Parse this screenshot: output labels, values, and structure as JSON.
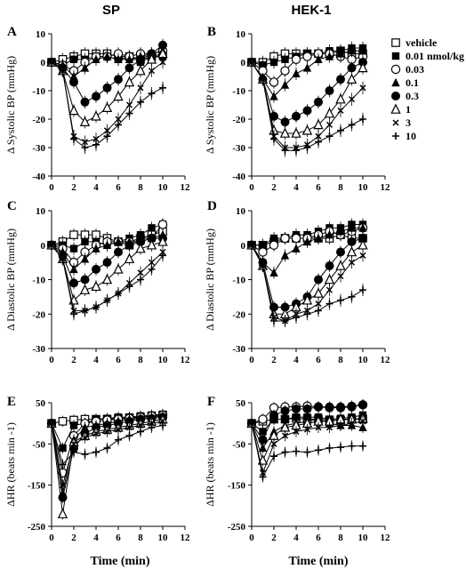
{
  "figure": {
    "column_titles": [
      "SP",
      "HEK-1"
    ],
    "panel_letters": [
      "A",
      "B",
      "C",
      "D",
      "E",
      "F"
    ],
    "xlabel": "Time (min)"
  },
  "legend": {
    "entries": [
      {
        "label": "vehicle",
        "marker": "open-square"
      },
      {
        "label": "0.01 nmol/kg",
        "marker": "filled-square"
      },
      {
        "label": "0.03",
        "marker": "open-circle"
      },
      {
        "label": "0.1",
        "marker": "filled-triangle"
      },
      {
        "label": "0.3",
        "marker": "filled-circle"
      },
      {
        "label": "1",
        "marker": "open-triangle"
      },
      {
        "label": "3",
        "marker": "cross"
      },
      {
        "label": "10",
        "marker": "plus"
      }
    ]
  },
  "chart_data": [
    {
      "type": "line",
      "panel": "A",
      "title": "",
      "xlabel": "",
      "ylabel": "Δ Systolic BP (mmHg)",
      "xlim": [
        0,
        12
      ],
      "ylim": [
        -40,
        10
      ],
      "xticks": [
        0,
        2,
        4,
        6,
        8,
        10,
        12
      ],
      "yticks": [
        10,
        0,
        -10,
        -20,
        -30,
        -40
      ],
      "x": [
        0,
        1,
        2,
        3,
        4,
        5,
        6,
        7,
        8,
        9,
        10
      ],
      "series": [
        {
          "name": "vehicle",
          "values": [
            0,
            1,
            2,
            3,
            3,
            3,
            2,
            2,
            1,
            2,
            3
          ]
        },
        {
          "name": "0.01 nmol/kg",
          "values": [
            0,
            -1,
            1,
            1,
            2,
            2,
            1,
            2,
            0,
            2,
            2
          ]
        },
        {
          "name": "0.03",
          "values": [
            0,
            -1,
            -3,
            0,
            2,
            2,
            3,
            2,
            3,
            3,
            4
          ]
        },
        {
          "name": "0.1",
          "values": [
            0,
            -1,
            -5,
            -2,
            1,
            2,
            1,
            1,
            2,
            3,
            4
          ]
        },
        {
          "name": "0.3",
          "values": [
            0,
            -2,
            -7,
            -14,
            -12,
            -9,
            -6,
            -2,
            1,
            3,
            6
          ]
        },
        {
          "name": "1",
          "values": [
            0,
            -3,
            -17,
            -21,
            -19,
            -16,
            -12,
            -7,
            -3,
            1,
            3
          ]
        },
        {
          "name": "3",
          "values": [
            0,
            -3,
            -26,
            -28,
            -27,
            -24,
            -20,
            -15,
            -9,
            -3,
            0
          ]
        },
        {
          "name": "10",
          "values": [
            0,
            -3,
            -27,
            -30,
            -29,
            -26,
            -22,
            -18,
            -14,
            -11,
            -9
          ]
        }
      ]
    },
    {
      "type": "line",
      "panel": "B",
      "title": "",
      "xlabel": "",
      "ylabel": "Δ Systolic BP (mmHg)",
      "xlim": [
        0,
        12
      ],
      "ylim": [
        -40,
        10
      ],
      "xticks": [
        0,
        2,
        4,
        6,
        8,
        10,
        12
      ],
      "yticks": [
        10,
        0,
        -10,
        -20,
        -30,
        -40
      ],
      "x": [
        0,
        1,
        2,
        3,
        4,
        5,
        6,
        7,
        8,
        9,
        10
      ],
      "series": [
        {
          "name": "vehicle",
          "values": [
            0,
            0,
            2,
            3,
            3,
            3,
            3,
            3,
            4,
            3,
            3
          ]
        },
        {
          "name": "0.01 nmol/kg",
          "values": [
            0,
            -1,
            0,
            1,
            2,
            3,
            3,
            4,
            4,
            5,
            5
          ]
        },
        {
          "name": "0.03",
          "values": [
            0,
            -3,
            -7,
            -3,
            1,
            2,
            3,
            3,
            2,
            1,
            2
          ]
        },
        {
          "name": "0.1",
          "values": [
            0,
            -6,
            -12,
            -8,
            -4,
            -2,
            1,
            2,
            3,
            4,
            4
          ]
        },
        {
          "name": "0.3",
          "values": [
            0,
            -6,
            -19,
            -21,
            -19,
            -17,
            -14,
            -10,
            -6,
            -2,
            0
          ]
        },
        {
          "name": "1",
          "values": [
            0,
            -6,
            -24,
            -25,
            -25,
            -24,
            -22,
            -18,
            -13,
            -6,
            -2
          ]
        },
        {
          "name": "3",
          "values": [
            0,
            -6,
            -26,
            -30,
            -30,
            -29,
            -26,
            -22,
            -17,
            -13,
            -9
          ]
        },
        {
          "name": "10",
          "values": [
            0,
            -6,
            -27,
            -31,
            -31,
            -30,
            -28,
            -26,
            -24,
            -22,
            -20
          ]
        }
      ]
    },
    {
      "type": "line",
      "panel": "C",
      "title": "",
      "xlabel": "",
      "ylabel": "Δ Diastolic BP (mmHg)",
      "xlim": [
        0,
        12
      ],
      "ylim": [
        -30,
        10
      ],
      "xticks": [
        0,
        2,
        4,
        6,
        8,
        10,
        12
      ],
      "yticks": [
        10,
        0,
        -10,
        -20,
        -30
      ],
      "x": [
        0,
        1,
        2,
        3,
        4,
        5,
        6,
        7,
        8,
        9,
        10
      ],
      "series": [
        {
          "name": "vehicle",
          "values": [
            0,
            1,
            3,
            3,
            3,
            2,
            1,
            0,
            2,
            3,
            4
          ]
        },
        {
          "name": "0.01 nmol/kg",
          "values": [
            0,
            0,
            -1,
            1,
            1,
            0,
            1,
            2,
            3,
            5,
            6
          ]
        },
        {
          "name": "0.03",
          "values": [
            0,
            -1,
            -5,
            -2,
            0,
            1,
            1,
            1,
            1,
            2,
            6
          ]
        },
        {
          "name": "0.1",
          "values": [
            0,
            -2,
            -7,
            -4,
            -1,
            0,
            1,
            1,
            2,
            2,
            3
          ]
        },
        {
          "name": "0.3",
          "values": [
            0,
            -3,
            -11,
            -10,
            -7,
            -5,
            -2,
            0,
            1,
            2,
            2
          ]
        },
        {
          "name": "1",
          "values": [
            0,
            -4,
            -16,
            -13,
            -12,
            -10,
            -7,
            -4,
            -1,
            0,
            1
          ]
        },
        {
          "name": "3",
          "values": [
            0,
            -4,
            -19,
            -19,
            -18,
            -16,
            -14,
            -11,
            -8,
            -5,
            -2
          ]
        },
        {
          "name": "10",
          "values": [
            0,
            -4,
            -20,
            -19,
            -18,
            -16,
            -14,
            -12,
            -10,
            -7,
            -3
          ]
        }
      ]
    },
    {
      "type": "line",
      "panel": "D",
      "title": "",
      "xlabel": "",
      "ylabel": "Δ Diastolic BP (mmHg)",
      "xlim": [
        0,
        12
      ],
      "ylim": [
        -30,
        10
      ],
      "xticks": [
        0,
        2,
        4,
        6,
        8,
        10,
        12
      ],
      "yticks": [
        10,
        0,
        -10,
        -20,
        -30
      ],
      "x": [
        0,
        1,
        2,
        3,
        4,
        5,
        6,
        7,
        8,
        9,
        10
      ],
      "series": [
        {
          "name": "vehicle",
          "values": [
            0,
            0,
            1,
            2,
            2,
            2,
            2,
            2,
            3,
            2,
            2
          ]
        },
        {
          "name": "0.01 nmol/kg",
          "values": [
            0,
            0,
            2,
            2,
            3,
            3,
            4,
            5,
            5,
            6,
            6
          ]
        },
        {
          "name": "0.03",
          "values": [
            0,
            -2,
            0,
            2,
            2,
            2,
            3,
            4,
            3,
            4,
            5
          ]
        },
        {
          "name": "0.1",
          "values": [
            0,
            -5,
            -8,
            -3,
            -1,
            1,
            2,
            3,
            4,
            5,
            5
          ]
        },
        {
          "name": "0.3",
          "values": [
            0,
            -5,
            -18,
            -18,
            -17,
            -15,
            -10,
            -6,
            -2,
            1,
            2
          ]
        },
        {
          "name": "1",
          "values": [
            0,
            -6,
            -20,
            -20,
            -18,
            -16,
            -14,
            -10,
            -6,
            -2,
            0
          ]
        },
        {
          "name": "3",
          "values": [
            0,
            -6,
            -21,
            -22,
            -20,
            -19,
            -17,
            -13,
            -9,
            -5,
            -3
          ]
        },
        {
          "name": "10",
          "values": [
            0,
            -6,
            -22,
            -22,
            -21,
            -20,
            -19,
            -17,
            -16,
            -15,
            -13
          ]
        }
      ]
    },
    {
      "type": "line",
      "panel": "E",
      "title": "",
      "xlabel": "Time (min)",
      "ylabel": "ΔHR (beats min -1)",
      "xlim": [
        0,
        12
      ],
      "ylim": [
        -250,
        50
      ],
      "xticks": [
        0,
        2,
        4,
        6,
        8,
        10,
        12
      ],
      "yticks": [
        50,
        -50,
        -150,
        -250
      ],
      "x": [
        0,
        1,
        2,
        3,
        4,
        5,
        6,
        7,
        8,
        9,
        10
      ],
      "series": [
        {
          "name": "vehicle",
          "values": [
            0,
            5,
            8,
            10,
            10,
            10,
            12,
            14,
            15,
            18,
            20
          ]
        },
        {
          "name": "0.01 nmol/kg",
          "values": [
            0,
            -60,
            -5,
            0,
            10,
            12,
            15,
            15,
            18,
            20,
            22
          ]
        },
        {
          "name": "0.03",
          "values": [
            0,
            -120,
            -30,
            0,
            5,
            8,
            10,
            12,
            15,
            18,
            20
          ]
        },
        {
          "name": "0.1",
          "values": [
            0,
            -170,
            -40,
            -10,
            -5,
            0,
            5,
            10,
            12,
            15,
            18
          ]
        },
        {
          "name": "0.3",
          "values": [
            0,
            -180,
            -60,
            -25,
            -10,
            -5,
            0,
            5,
            10,
            12,
            15
          ]
        },
        {
          "name": "1",
          "values": [
            0,
            -220,
            -45,
            -30,
            -20,
            -15,
            -10,
            -5,
            0,
            5,
            10
          ]
        },
        {
          "name": "3",
          "values": [
            0,
            -150,
            -50,
            -35,
            -25,
            -20,
            -15,
            -10,
            -5,
            0,
            5
          ]
        },
        {
          "name": "10",
          "values": [
            0,
            -100,
            -70,
            -75,
            -70,
            -60,
            -40,
            -30,
            -20,
            -10,
            -5
          ]
        }
      ]
    },
    {
      "type": "line",
      "panel": "F",
      "title": "",
      "xlabel": "Time (min)",
      "ylabel": "ΔHR (beats min -1)",
      "xlim": [
        0,
        12
      ],
      "ylim": [
        -250,
        50
      ],
      "xticks": [
        0,
        2,
        4,
        6,
        8,
        10,
        12
      ],
      "yticks": [
        50,
        -50,
        -150,
        -250
      ],
      "x": [
        0,
        1,
        2,
        3,
        4,
        5,
        6,
        7,
        8,
        9,
        10
      ],
      "series": [
        {
          "name": "vehicle",
          "values": [
            0,
            5,
            10,
            10,
            12,
            10,
            10,
            8,
            8,
            10,
            10
          ]
        },
        {
          "name": "0.01 nmol/kg",
          "values": [
            0,
            -20,
            10,
            10,
            15,
            15,
            15,
            10,
            12,
            15,
            20
          ]
        },
        {
          "name": "0.03",
          "values": [
            0,
            10,
            38,
            40,
            40,
            42,
            40,
            38,
            38,
            40,
            45
          ]
        },
        {
          "name": "0.1",
          "values": [
            0,
            -60,
            -20,
            -5,
            0,
            5,
            10,
            0,
            -5,
            -5,
            -10
          ]
        },
        {
          "name": "0.3",
          "values": [
            0,
            -40,
            20,
            30,
            35,
            35,
            40,
            40,
            40,
            42,
            45
          ]
        },
        {
          "name": "1",
          "values": [
            0,
            -90,
            -30,
            -10,
            -5,
            0,
            5,
            5,
            10,
            10,
            12
          ]
        },
        {
          "name": "3",
          "values": [
            0,
            -120,
            -50,
            -30,
            -20,
            -15,
            -10,
            -10,
            -5,
            0,
            5
          ]
        },
        {
          "name": "10",
          "values": [
            0,
            -130,
            -80,
            -70,
            -68,
            -70,
            -65,
            -60,
            -58,
            -55,
            -55
          ]
        }
      ]
    }
  ]
}
